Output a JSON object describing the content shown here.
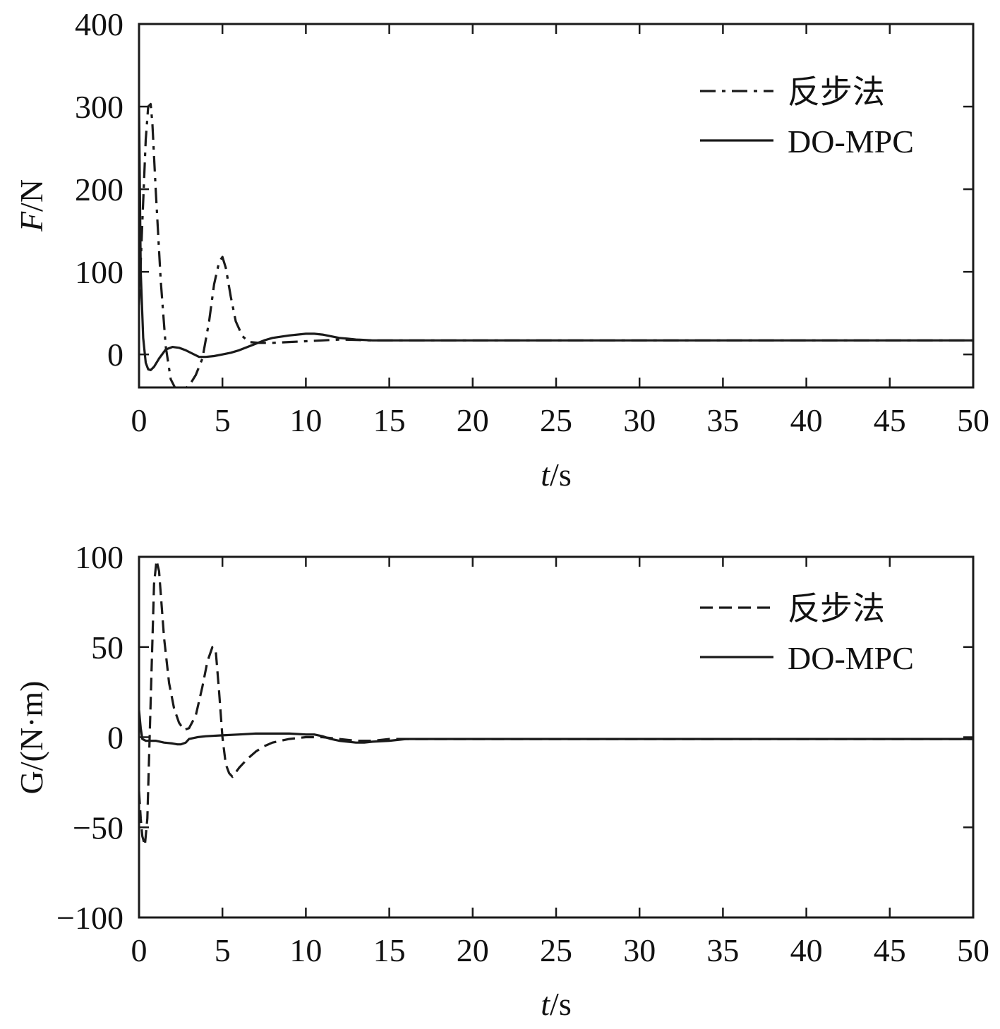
{
  "chart_data": [
    {
      "type": "line",
      "xlabel_italic": "t",
      "xlabel_unit": "/s",
      "ylabel_italic": "F",
      "ylabel_unit": "/N",
      "xlim": [
        0,
        50
      ],
      "ylim": [
        -40,
        400
      ],
      "xticks": [
        "0",
        "5",
        "10",
        "15",
        "20",
        "25",
        "30",
        "35",
        "40",
        "45",
        "50"
      ],
      "xtick_values": [
        0,
        5,
        10,
        15,
        20,
        25,
        30,
        35,
        40,
        45,
        50
      ],
      "yticks": [
        "0",
        "100",
        "200",
        "300",
        "400"
      ],
      "ytick_values": [
        0,
        100,
        200,
        300,
        400
      ],
      "grid": false,
      "legend_position": "top-right",
      "series": [
        {
          "name": "反步法",
          "style": "dashdot",
          "x": [
            0,
            0.2,
            0.4,
            0.55,
            0.7,
            0.8,
            1.0,
            1.3,
            1.6,
            1.9,
            2.2,
            2.6,
            3.0,
            3.4,
            3.8,
            4.2,
            4.5,
            4.8,
            5.0,
            5.2,
            5.5,
            5.8,
            6.2,
            6.6,
            7.2,
            8.0,
            9.0,
            10.0,
            11.0,
            12.0,
            14.0,
            20.0,
            30.0,
            40.0,
            50.0
          ],
          "y": [
            60,
            160,
            260,
            300,
            303,
            280,
            200,
            90,
            10,
            -30,
            -42,
            -43,
            -38,
            -25,
            -5,
            40,
            85,
            112,
            118,
            105,
            70,
            40,
            22,
            15,
            14,
            14,
            15,
            16,
            17,
            18,
            17,
            17,
            17,
            17,
            17
          ]
        },
        {
          "name": "DO-MPC",
          "style": "solid",
          "x": [
            0,
            0.1,
            0.25,
            0.4,
            0.55,
            0.7,
            0.9,
            1.2,
            1.6,
            2.0,
            2.4,
            2.8,
            3.2,
            3.6,
            4.0,
            4.5,
            5.0,
            5.5,
            6.0,
            6.5,
            7.0,
            7.5,
            8.0,
            9.0,
            10.0,
            10.5,
            11.0,
            11.5,
            12.0,
            12.5,
            13.0,
            14.0,
            16.0,
            20.0,
            30.0,
            40.0,
            50.0
          ],
          "y": [
            300,
            100,
            20,
            -10,
            -18,
            -19,
            -15,
            -5,
            6,
            9,
            8,
            5,
            1,
            -3,
            -3,
            -2,
            0,
            2,
            5,
            9,
            13,
            17,
            20,
            23,
            25,
            25,
            24,
            22,
            20,
            19,
            18,
            17,
            17,
            17,
            17,
            17,
            17
          ]
        }
      ]
    },
    {
      "type": "line",
      "xlabel_italic": "t",
      "xlabel_unit": "/s",
      "ylabel": "G/(N·m)",
      "xlim": [
        0,
        50
      ],
      "ylim": [
        -100,
        100
      ],
      "xticks": [
        "0",
        "5",
        "10",
        "15",
        "20",
        "25",
        "30",
        "35",
        "40",
        "45",
        "50"
      ],
      "xtick_values": [
        0,
        5,
        10,
        15,
        20,
        25,
        30,
        35,
        40,
        45,
        50
      ],
      "yticks": [
        "−100",
        "−50",
        "0",
        "50",
        "100"
      ],
      "ytick_values": [
        -100,
        -50,
        0,
        50,
        100
      ],
      "grid": false,
      "legend_position": "top-right",
      "series": [
        {
          "name": "反步法",
          "style": "dashed",
          "x": [
            0,
            0.1,
            0.2,
            0.35,
            0.5,
            0.7,
            0.9,
            1.05,
            1.2,
            1.5,
            1.8,
            2.1,
            2.4,
            2.7,
            3.0,
            3.4,
            3.8,
            4.1,
            4.4,
            4.6,
            4.8,
            5.0,
            5.2,
            5.4,
            5.6,
            6.0,
            6.5,
            7.0,
            7.5,
            8.0,
            8.5,
            9.0,
            10.0,
            11.0,
            12.0,
            13.0,
            14.0,
            15.0,
            16.0,
            20.0,
            30.0,
            40.0,
            50.0
          ],
          "y": [
            -30,
            -45,
            -55,
            -60,
            -45,
            20,
            85,
            98,
            92,
            55,
            30,
            16,
            8,
            4,
            5,
            12,
            28,
            42,
            50,
            48,
            25,
            0,
            -15,
            -20,
            -22,
            -17,
            -12,
            -8,
            -5,
            -3,
            -2,
            -1,
            0,
            0,
            -1,
            -2,
            -2,
            -1,
            -1,
            -1,
            -1,
            -1,
            -1
          ]
        },
        {
          "name": "DO-MPC",
          "style": "solid",
          "x": [
            0,
            0.1,
            0.2,
            0.4,
            0.6,
            1.0,
            1.5,
            2.0,
            2.3,
            2.5,
            2.8,
            3.0,
            3.5,
            4.0,
            5.0,
            6.0,
            7.0,
            8.0,
            9.0,
            10.0,
            10.5,
            11.0,
            11.5,
            12.0,
            12.5,
            13.0,
            13.5,
            14.0,
            15.0,
            16.0,
            20.0,
            30.0,
            40.0,
            50.0
          ],
          "y": [
            15,
            5,
            -1,
            -2,
            -2,
            -2,
            -3,
            -3.5,
            -4,
            -4,
            -3,
            -1,
            0,
            0.5,
            1,
            1.5,
            2,
            2,
            2,
            1.5,
            1.5,
            0.5,
            -1,
            -2,
            -2.5,
            -3,
            -3,
            -2.5,
            -2,
            -1,
            -1,
            -1,
            -1,
            -1
          ]
        }
      ]
    }
  ]
}
